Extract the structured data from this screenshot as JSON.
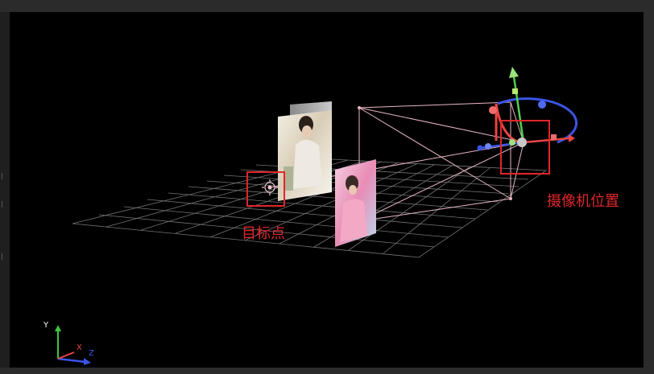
{
  "annotations": {
    "target_point_label": "目标点",
    "camera_position_label": "摄像机位置"
  },
  "axis_gizmo": {
    "x": "X",
    "y": "Y",
    "z": "Z"
  },
  "colors": {
    "annotation": "#e0262a",
    "grid": "#9a9a9a",
    "frustum": "#e8b7c2",
    "axis_x": "#e84545",
    "axis_y": "#4fd04f",
    "axis_z": "#3a55e6",
    "canvas_bg": "#000000",
    "frame_bg": "#2b2b2b"
  },
  "icons": [
    "target-point-icon",
    "camera-gizmo-icon",
    "axis-indicator-icon"
  ]
}
